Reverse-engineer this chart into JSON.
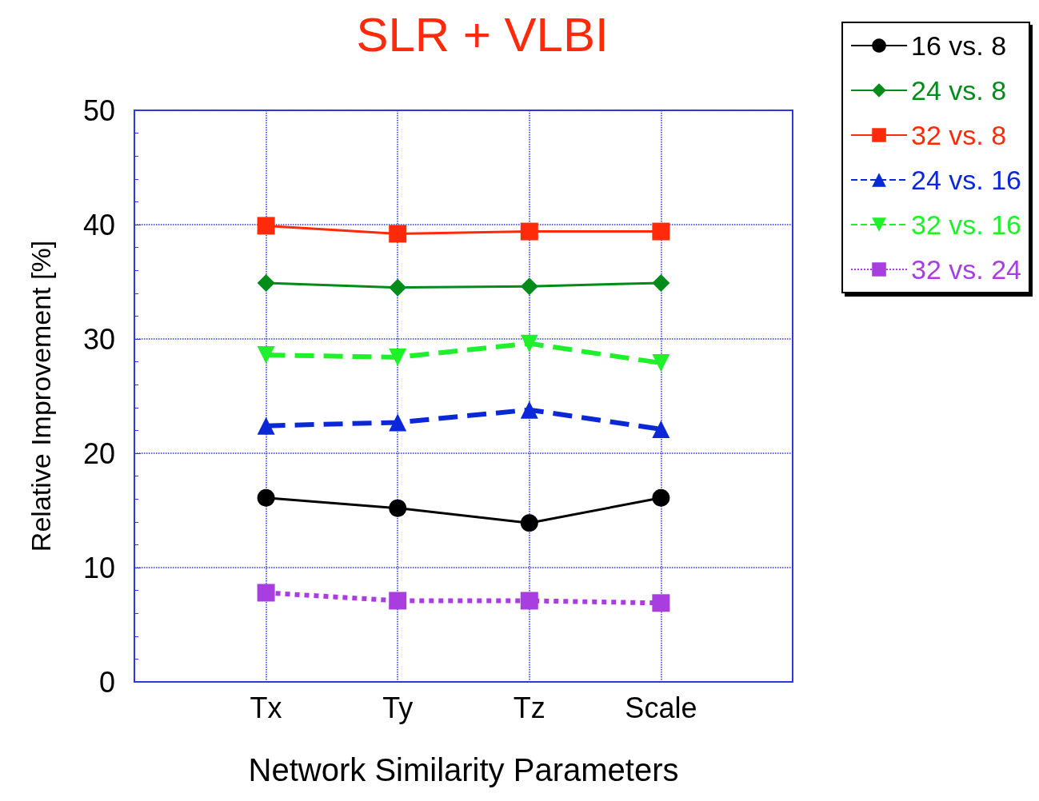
{
  "chart_data": {
    "type": "line",
    "title": "SLR + VLBI",
    "xlabel": "Network Similarity Parameters",
    "ylabel": "Relative Improvement [%]",
    "categories": [
      null,
      "Tx",
      "Ty",
      "Tz",
      "Scale",
      null
    ],
    "ylim": [
      0,
      50
    ],
    "yticks": [
      0,
      10,
      20,
      30,
      40,
      50
    ],
    "grid": true,
    "legend": "top right",
    "series": [
      {
        "name": "16 vs. 8",
        "color": "#000000",
        "marker": "circle",
        "line_style": "solid",
        "values": [
          null,
          16.1,
          15.2,
          13.9,
          16.1,
          null
        ]
      },
      {
        "name": "24 vs. 8",
        "color": "#008c1a",
        "marker": "diamond",
        "line_style": "solid",
        "values": [
          null,
          34.9,
          34.5,
          34.6,
          34.9,
          null
        ]
      },
      {
        "name": "32 vs. 8",
        "color": "#ff2a0a",
        "marker": "square",
        "line_style": "solid",
        "values": [
          null,
          39.9,
          39.2,
          39.4,
          39.4,
          null
        ]
      },
      {
        "name": "24 vs. 16",
        "color": "#0a28d8",
        "marker": "triangle",
        "line_style": "dashed",
        "values": [
          null,
          22.4,
          22.7,
          23.8,
          22.1,
          null
        ]
      },
      {
        "name": "32 vs. 16",
        "color": "#1ef02a",
        "marker": "triangle-down",
        "line_style": "dashed",
        "values": [
          null,
          28.6,
          28.4,
          29.6,
          27.9,
          null
        ]
      },
      {
        "name": "32 vs. 24",
        "color": "#a83ee0",
        "marker": "square",
        "line_style": "dotted",
        "values": [
          null,
          7.8,
          7.1,
          7.1,
          6.9,
          null
        ]
      }
    ]
  }
}
